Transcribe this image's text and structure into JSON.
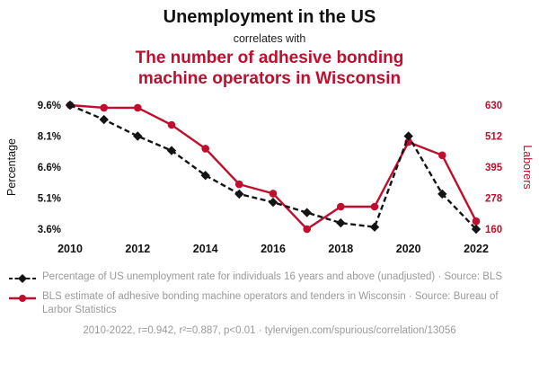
{
  "header": {
    "title": "Unemployment in the US",
    "subtitle": "correlates with",
    "red_title_line1": "The number of adhesive bonding",
    "red_title_line2": "machine operators in Wisconsin"
  },
  "colors": {
    "red": "#c00f2e",
    "black": "#141414",
    "legend_gray": "#9a9a9a"
  },
  "chart_data": {
    "type": "line",
    "x": [
      2010,
      2011,
      2012,
      2013,
      2014,
      2015,
      2016,
      2017,
      2018,
      2019,
      2020,
      2021,
      2022
    ],
    "x_ticks": [
      2010,
      2012,
      2014,
      2016,
      2018,
      2020,
      2022
    ],
    "left_axis": {
      "label": "Percentage",
      "range": [
        3.6,
        9.6
      ],
      "ticks": [
        9.6,
        8.1,
        6.6,
        5.1,
        3.6
      ],
      "tick_labels": [
        "9.6%",
        "8.1%",
        "6.6%",
        "5.1%",
        "3.6%"
      ]
    },
    "right_axis": {
      "label": "Laborers",
      "range": [
        160,
        630
      ],
      "ticks": [
        630,
        512,
        395,
        278,
        160
      ],
      "tick_labels": [
        "630",
        "512",
        "395",
        "278",
        "160"
      ]
    },
    "series": [
      {
        "name": "Percentage of US unemployment rate for individuals 16 years and above (unadjusted)",
        "yaxis": "left",
        "color": "#141414",
        "marker": "diamond",
        "line_style": "dashed",
        "values": [
          9.6,
          8.9,
          8.1,
          7.4,
          6.2,
          5.3,
          4.9,
          4.4,
          3.9,
          3.7,
          8.1,
          5.3,
          3.6
        ]
      },
      {
        "name": "BLS estimate of adhesive bonding machine operators and tenders in Wisconsin",
        "yaxis": "right",
        "color": "#c00f2e",
        "marker": "circle",
        "line_style": "solid",
        "values": [
          630,
          620,
          620,
          555,
          465,
          330,
          295,
          160,
          245,
          245,
          490,
          440,
          190
        ]
      }
    ],
    "legend_position": "bottom",
    "grid": false
  },
  "legend": [
    {
      "label": "Percentage of US unemployment rate for individuals 16 years and above (unadjusted) · Source: BLS"
    },
    {
      "label": "BLS estimate of adhesive bonding machine operators and tenders in Wisconsin · Source: Bureau of Larbor Statistics"
    }
  ],
  "footer": {
    "text": "2010-2022, r=0.942, r²=0.887, p<0.01 · tylervigen.com/spurious/correlation/13056"
  }
}
